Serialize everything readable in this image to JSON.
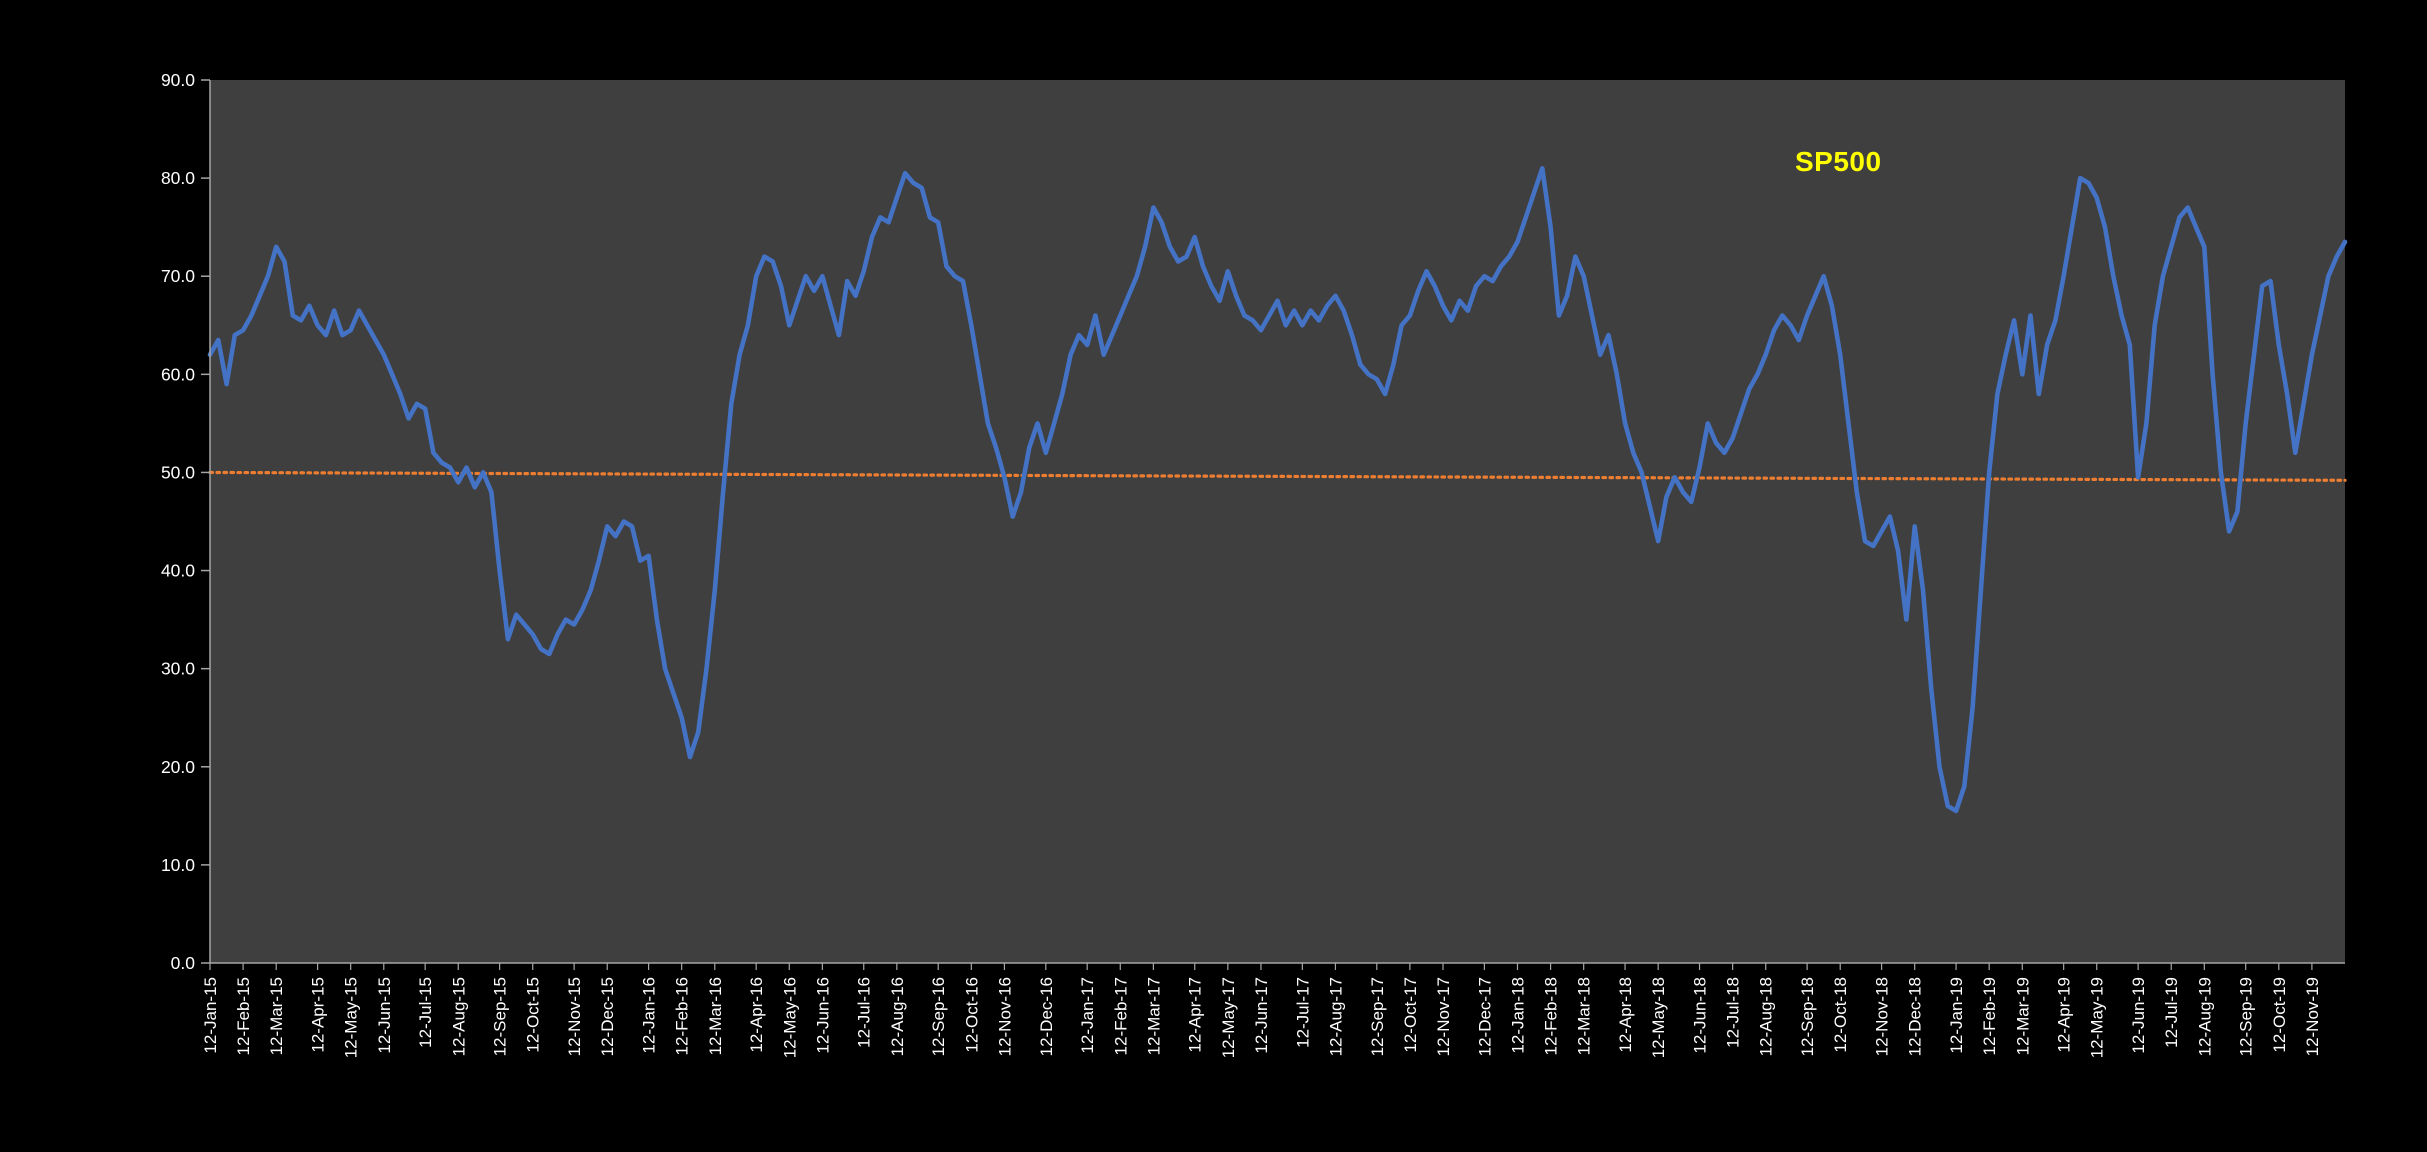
{
  "chart_data": {
    "type": "line",
    "title": "",
    "xlabel": "",
    "ylabel": "",
    "series_label": "SP500",
    "series_label_color": "#FFFF00",
    "line_color": "#4472C4",
    "background": "#000000",
    "plot_background": "#3F3F3F",
    "axis_text_color": "#FFFFFF",
    "axis_line_color": "#A6A6A6",
    "grid": "off",
    "legend": "none",
    "ylim": [
      0,
      90
    ],
    "y_ticks": [
      "0.0",
      "10.0",
      "20.0",
      "30.0",
      "40.0",
      "50.0",
      "60.0",
      "70.0",
      "80.0",
      "90.0"
    ],
    "threshold_line": {
      "start_value": 50.0,
      "end_value": 49.2,
      "color": "#ED7D31",
      "style": "dotted"
    },
    "x_tick_labels": [
      "12-Jan-15",
      "12-Feb-15",
      "12-Mar-15",
      "12-Apr-15",
      "12-May-15",
      "12-Jun-15",
      "12-Jul-15",
      "12-Aug-15",
      "12-Sep-15",
      "12-Oct-15",
      "12-Nov-15",
      "12-Dec-15",
      "12-Jan-16",
      "12-Feb-16",
      "12-Mar-16",
      "12-Apr-16",
      "12-May-16",
      "12-Jun-16",
      "12-Jul-16",
      "12-Aug-16",
      "12-Sep-16",
      "12-Oct-16",
      "12-Nov-16",
      "12-Dec-16",
      "12-Jan-17",
      "12-Feb-17",
      "12-Mar-17",
      "12-Apr-17",
      "12-May-17",
      "12-Jun-17",
      "12-Jul-17",
      "12-Aug-17",
      "12-Sep-17",
      "12-Oct-17",
      "12-Nov-17",
      "12-Dec-17",
      "12-Jan-18",
      "12-Feb-18",
      "12-Mar-18",
      "12-Apr-18",
      "12-May-18",
      "12-Jun-18",
      "12-Jul-18",
      "12-Aug-18",
      "12-Sep-18",
      "12-Oct-18",
      "12-Nov-18",
      "12-Dec-18",
      "12-Jan-19",
      "12-Feb-19",
      "12-Mar-19",
      "12-Apr-19",
      "12-May-19",
      "12-Jun-19",
      "12-Jul-19",
      "12-Aug-19",
      "12-Sep-19",
      "12-Oct-19",
      "12-Nov-19"
    ],
    "x_tick_positions_weeks": [
      0,
      4,
      8,
      13,
      17,
      21,
      26,
      30,
      35,
      39,
      44,
      48,
      53,
      57,
      61,
      66,
      70,
      74,
      79,
      83,
      88,
      92,
      96,
      101,
      106,
      110,
      114,
      119,
      123,
      127,
      132,
      136,
      141,
      145,
      149,
      154,
      158,
      162,
      166,
      171,
      175,
      180,
      184,
      188,
      193,
      197,
      202,
      206,
      211,
      215,
      219,
      224,
      228,
      233,
      237,
      241,
      246,
      250,
      254
    ],
    "values": [
      62,
      63.5,
      59,
      64,
      64.5,
      66,
      68,
      70,
      73,
      71.5,
      66,
      65.5,
      67,
      65,
      64,
      66.5,
      64,
      64.5,
      66.5,
      65,
      63.5,
      62,
      60,
      58,
      55.5,
      57,
      56.5,
      52,
      51,
      50.5,
      49,
      50.5,
      48.5,
      50,
      48,
      40,
      33,
      35.5,
      34.5,
      33.5,
      32,
      31.5,
      33.5,
      35,
      34.5,
      36,
      38,
      41,
      44.5,
      43.5,
      45,
      44.5,
      41,
      41.5,
      35,
      30,
      27.5,
      25,
      21,
      23.5,
      30,
      38,
      48,
      57,
      62,
      65,
      70,
      72,
      71.5,
      69,
      65,
      67.5,
      70,
      68.5,
      70,
      67,
      64,
      69.5,
      68,
      70.5,
      74,
      76,
      75.5,
      78,
      80.5,
      79.5,
      79,
      76,
      75.5,
      71,
      70,
      69.5,
      65,
      60,
      55,
      52.5,
      49.5,
      45.5,
      48,
      52.5,
      55,
      52,
      55,
      58,
      62,
      64,
      63,
      66,
      62,
      64,
      66,
      68,
      70,
      73,
      77,
      75.5,
      73,
      71.5,
      72,
      74,
      71,
      69,
      67.5,
      70.5,
      68,
      66,
      65.5,
      64.5,
      66,
      67.5,
      65,
      66.5,
      65,
      66.5,
      65.5,
      67,
      68,
      66.5,
      64,
      61,
      60,
      59.5,
      58,
      61,
      65,
      66,
      68.5,
      70.5,
      69,
      67,
      65.5,
      67.5,
      66.5,
      69,
      70,
      69.5,
      71,
      72,
      73.5,
      76,
      78.5,
      81,
      75,
      66,
      68,
      72,
      70,
      66,
      62,
      64,
      60,
      55,
      52,
      50,
      46.5,
      43,
      47.5,
      49.5,
      48,
      47,
      50.5,
      55,
      53,
      52,
      53.5,
      56,
      58.5,
      60,
      62,
      64.5,
      66,
      65,
      63.5,
      66,
      68,
      70,
      67,
      62,
      55,
      48,
      43,
      42.5,
      44,
      45.5,
      42,
      35,
      44.5,
      38,
      28,
      20,
      16,
      15.5,
      18,
      26,
      38,
      50,
      58,
      62,
      65.5,
      60,
      66,
      58,
      63,
      65.5,
      70,
      75,
      80,
      79.5,
      78,
      75,
      70,
      66,
      63,
      49.5,
      55,
      65,
      70,
      73,
      76,
      77,
      75,
      73,
      60,
      50,
      44,
      46,
      55,
      62,
      69,
      69.5,
      63,
      58,
      52,
      57,
      62,
      66,
      70,
      72,
      73.5
    ]
  }
}
